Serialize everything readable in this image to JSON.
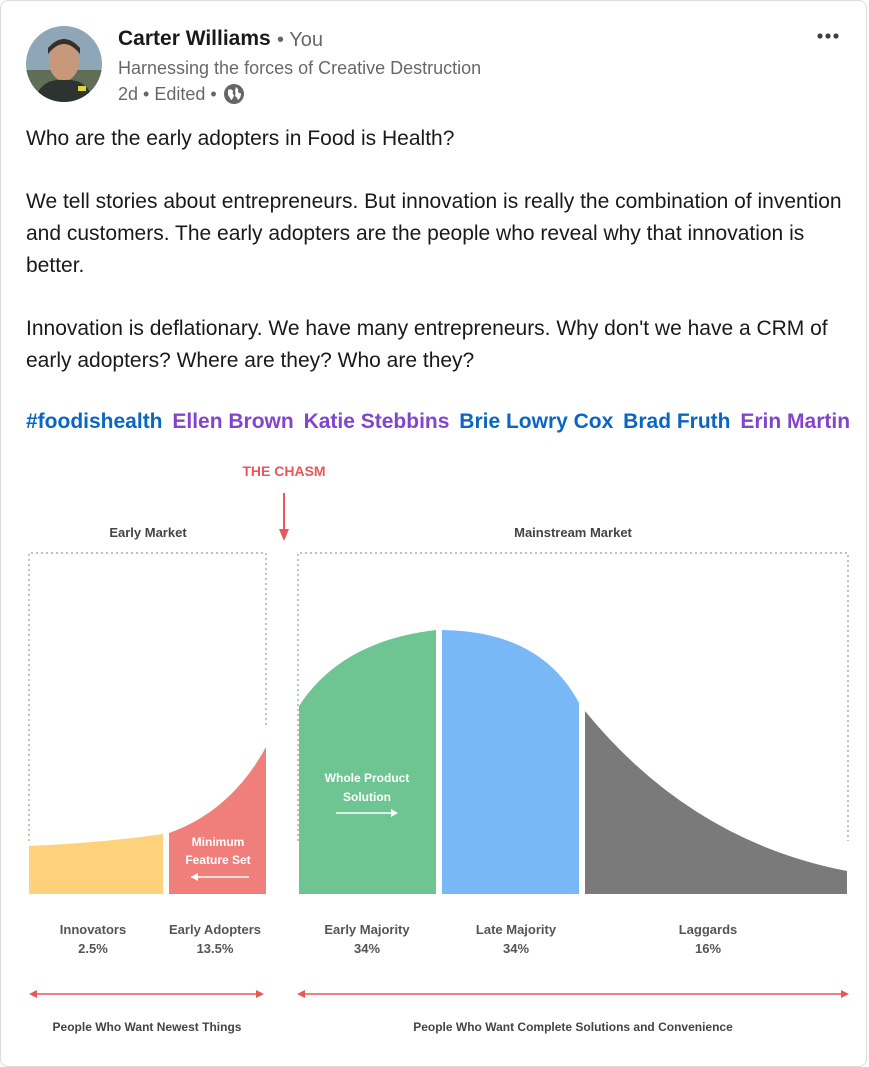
{
  "post": {
    "author": {
      "name": "Carter Williams",
      "relation": "• You",
      "headline": "Harnessing the forces of Creative Destruction",
      "time": "2d • Edited •"
    },
    "paragraphs": [
      "Who are the early adopters in Food is Health?",
      "We tell stories about entrepreneurs. But innovation is really the combination of invention and customers. The early adopters are the people who reveal why that innovation is better.",
      "Innovation is deflationary. We have many entrepreneurs. Why don't we have a CRM of early adopters? Where are they? Who are they?"
    ],
    "tags": [
      {
        "text": "#foodishealth",
        "color": "#0a66c2"
      },
      {
        "text": "Ellen Brown",
        "color": "#8344cc"
      },
      {
        "text": "Katie Stebbins",
        "color": "#8344cc"
      },
      {
        "text": "Brie Lowry Cox",
        "color": "#0a66c2"
      },
      {
        "text": "Brad Fruth",
        "color": "#0a66c2"
      },
      {
        "text": "Erin Martin",
        "color": "#8344cc"
      }
    ],
    "more_icon": "ellipsis-icon",
    "visibility_icon": "globe-icon"
  },
  "chart_data": {
    "type": "area",
    "title": "",
    "chasm_label": "THE CHASM",
    "market_labels": [
      "Early Market",
      "Mainstream Market"
    ],
    "segments": [
      {
        "name": "Innovators",
        "percent": "2.5%",
        "color": "#fdd27a"
      },
      {
        "name": "Early Adopters",
        "percent": "13.5%",
        "color": "#f07f7c"
      },
      {
        "name": "Early Majority",
        "percent": "34%",
        "color": "#6fc592"
      },
      {
        "name": "Late Majority",
        "percent": "34%",
        "color": "#79b8f7"
      },
      {
        "name": "Laggards",
        "percent": "16%",
        "color": "#7a7a7a"
      }
    ],
    "annotations": {
      "minimum_feature_set": [
        "Minimum",
        "Feature Set"
      ],
      "whole_product": [
        "Whole Product",
        "Solution"
      ]
    },
    "bottom_labels": [
      "People Who Want Newest Things",
      "People Who Want Complete Solutions and Convenience"
    ],
    "accent_color": "#e8575a"
  }
}
